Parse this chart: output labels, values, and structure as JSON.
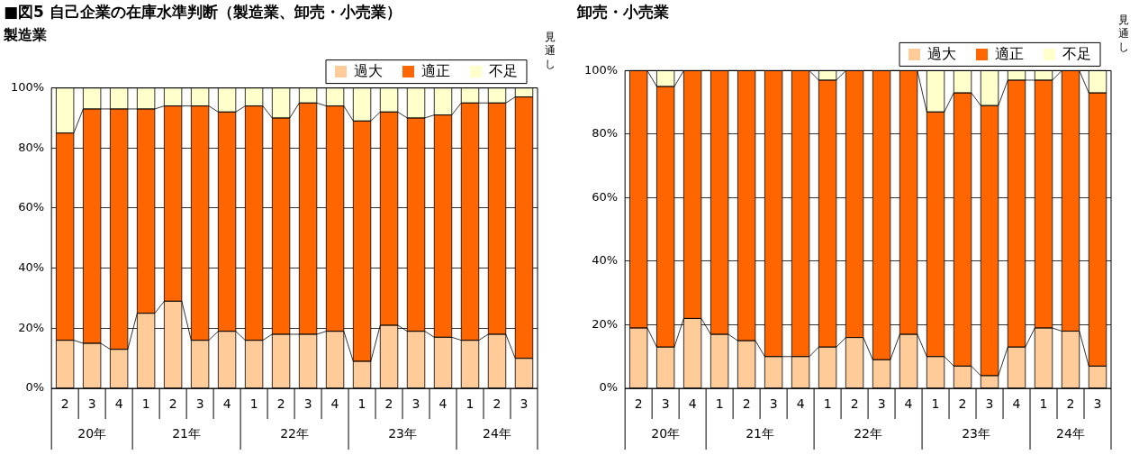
{
  "chart_data": [
    {
      "type": "bar",
      "title": "■図5 自己企業の在庫水準判断（製造業、卸売・小売業）",
      "subtitle": "製造業",
      "categories": [
        "2",
        "3",
        "4",
        "1",
        "2",
        "3",
        "4",
        "1",
        "2",
        "3",
        "4",
        "1",
        "2",
        "3",
        "4",
        "1",
        "2",
        "3"
      ],
      "series": [
        {
          "name": "過大",
          "color": "#ffcc99",
          "values": [
            16,
            15,
            13,
            25,
            29,
            16,
            19,
            16,
            18,
            18,
            19,
            9,
            21,
            19,
            17,
            16,
            18,
            10
          ]
        },
        {
          "name": "適正",
          "color": "#ff6600",
          "values": [
            69,
            78,
            80,
            68,
            65,
            78,
            73,
            78,
            72,
            77,
            75,
            80,
            71,
            71,
            74,
            79,
            77,
            87
          ]
        },
        {
          "name": "不足",
          "color": "#ffffcc",
          "values": [
            15,
            7,
            7,
            7,
            6,
            6,
            8,
            6,
            10,
            5,
            6,
            11,
            8,
            10,
            9,
            5,
            5,
            3
          ]
        }
      ],
      "stacked": true,
      "ylim": [
        0,
        100
      ],
      "yticks": [
        {
          "value": 0,
          "label": "0%"
        },
        {
          "value": 20,
          "label": "20%"
        },
        {
          "value": 40,
          "label": "40%"
        },
        {
          "value": 60,
          "label": "60%"
        },
        {
          "value": 80,
          "label": "80%"
        },
        {
          "value": 100,
          "label": "100%"
        }
      ],
      "grid": "y",
      "legend": "top right",
      "annotations": [
        "20年",
        "21年",
        "22年",
        "23年",
        "24年",
        "見通し"
      ]
    },
    {
      "type": "bar",
      "title": "卸売・小売業",
      "categories": [
        "2",
        "3",
        "4",
        "1",
        "2",
        "3",
        "4",
        "1",
        "2",
        "3",
        "4",
        "1",
        "2",
        "3",
        "4",
        "1",
        "2",
        "3"
      ],
      "series": [
        {
          "name": "過大",
          "color": "#ffcc99",
          "values": [
            19,
            13,
            22,
            17,
            15,
            10,
            10,
            13,
            16,
            9,
            17,
            10,
            7,
            4,
            13,
            19,
            18,
            7
          ]
        },
        {
          "name": "適正",
          "color": "#ff6600",
          "values": [
            81,
            82,
            78,
            83,
            85,
            90,
            90,
            84,
            84,
            91,
            83,
            77,
            86,
            85,
            84,
            78,
            82,
            86
          ]
        },
        {
          "name": "不足",
          "color": "#ffffcc",
          "values": [
            0,
            5,
            0,
            0,
            0,
            0,
            0,
            3,
            0,
            0,
            0,
            13,
            7,
            11,
            3,
            3,
            0,
            7
          ]
        }
      ],
      "stacked": true,
      "ylim": [
        0,
        100
      ],
      "yticks": [
        {
          "value": 0,
          "label": "0%"
        },
        {
          "value": 20,
          "label": "20%"
        },
        {
          "value": 40,
          "label": "40%"
        },
        {
          "value": 60,
          "label": "60%"
        },
        {
          "value": 80,
          "label": "80%"
        },
        {
          "value": 100,
          "label": "100%"
        }
      ],
      "grid": "y",
      "legend": "top right",
      "annotations": [
        "20年",
        "21年",
        "22年",
        "23年",
        "24年",
        "見通し"
      ]
    }
  ]
}
